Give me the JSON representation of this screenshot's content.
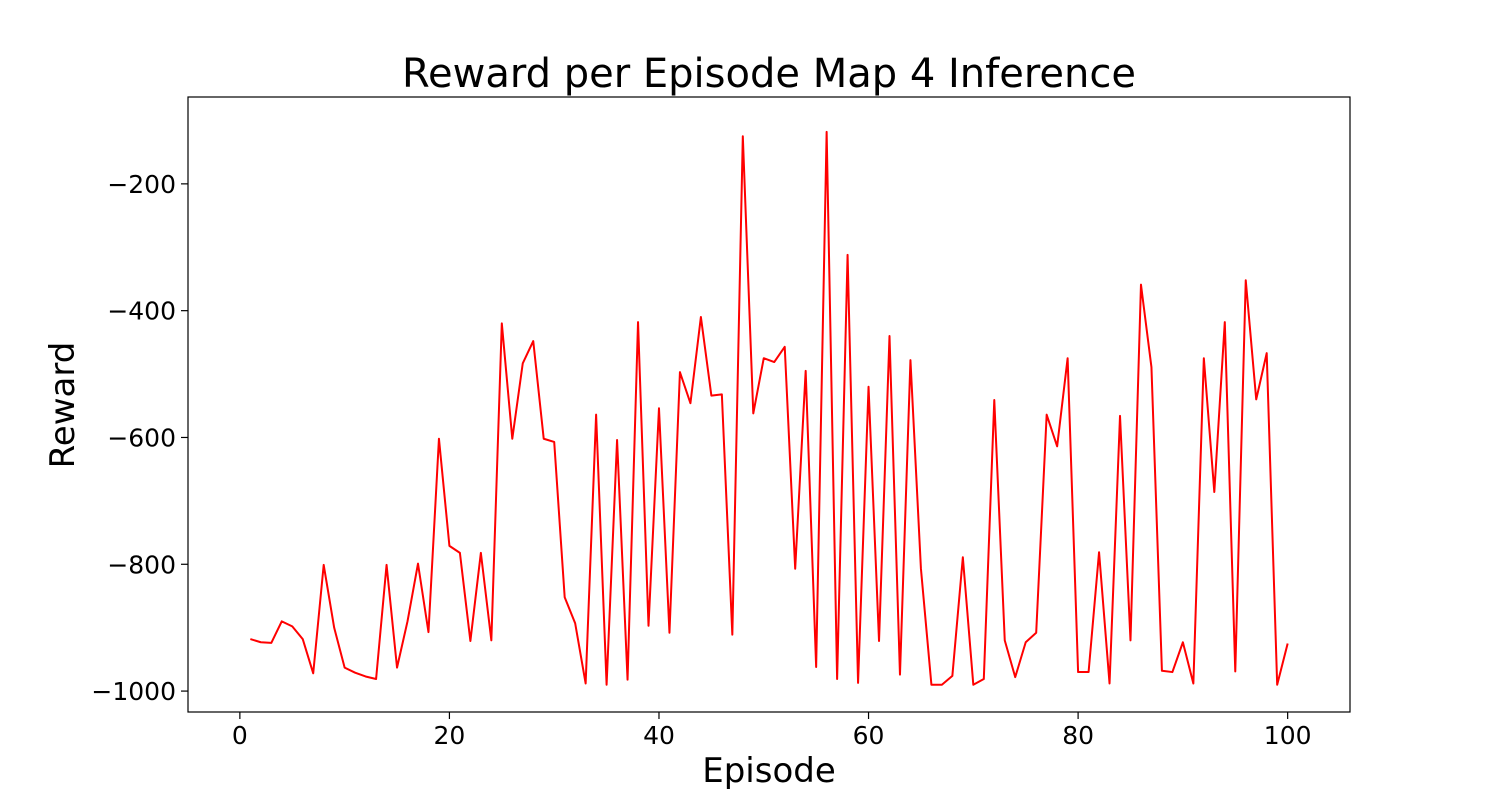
{
  "chart_data": {
    "type": "line",
    "title": "Reward per Episode Map 4 Inference",
    "xlabel": "Episode",
    "ylabel": "Reward",
    "xlim": [
      -4.95,
      105.95
    ],
    "ylim": [
      -1033,
      -63
    ],
    "xticks": [
      0,
      20,
      40,
      60,
      80,
      100
    ],
    "yticks": [
      -1000,
      -800,
      -600,
      -400,
      -200
    ],
    "xtick_labels": [
      "0",
      "20",
      "40",
      "60",
      "80",
      "100"
    ],
    "ytick_labels": [
      "−1000",
      "−800",
      "−600",
      "−400",
      "−200"
    ],
    "grid": false,
    "series": [
      {
        "color": "#ff0000",
        "x": [
          1,
          2,
          3,
          4,
          5,
          6,
          7,
          8,
          9,
          10,
          11,
          12,
          13,
          14,
          15,
          16,
          17,
          18,
          19,
          20,
          21,
          22,
          23,
          24,
          25,
          26,
          27,
          28,
          29,
          30,
          31,
          32,
          33,
          34,
          35,
          36,
          37,
          38,
          39,
          40,
          41,
          42,
          43,
          44,
          45,
          46,
          47,
          48,
          49,
          50,
          51,
          52,
          53,
          54,
          55,
          56,
          57,
          58,
          59,
          60,
          61,
          62,
          63,
          64,
          65,
          66,
          67,
          68,
          69,
          70,
          71,
          72,
          73,
          74,
          75,
          76,
          77,
          78,
          79,
          80,
          81,
          82,
          83,
          84,
          85,
          86,
          87,
          88,
          89,
          90,
          91,
          92,
          93,
          94,
          95,
          96,
          97,
          98,
          99,
          100
        ],
        "y": [
          -918,
          -923,
          -924,
          -890,
          -898,
          -918,
          -972,
          -801,
          -900,
          -963,
          -971,
          -977,
          -981,
          -801,
          -963,
          -890,
          -799,
          -907,
          -602,
          -771,
          -782,
          -921,
          -782,
          -920,
          -420,
          -602,
          -483,
          -448,
          -602,
          -607,
          -852,
          -893,
          -988,
          -564,
          -990,
          -604,
          -982,
          -418,
          -897,
          -554,
          -908,
          -497,
          -546,
          -410,
          -534,
          -532,
          -911,
          -125,
          -562,
          -475,
          -481,
          -457,
          -807,
          -495,
          -962,
          -118,
          -981,
          -312,
          -987,
          -520,
          -921,
          -440,
          -974,
          -478,
          -807,
          -990,
          -990,
          -976,
          -789,
          -990,
          -981,
          -541,
          -920,
          -978,
          -923,
          -908,
          -564,
          -614,
          -475,
          -970,
          -970,
          -781,
          -988,
          -566,
          -920,
          -359,
          -489,
          -968,
          -970,
          -923,
          -988,
          -475,
          -686,
          -418,
          -969,
          -352,
          -540,
          -467,
          -990,
          -925
        ]
      }
    ]
  }
}
